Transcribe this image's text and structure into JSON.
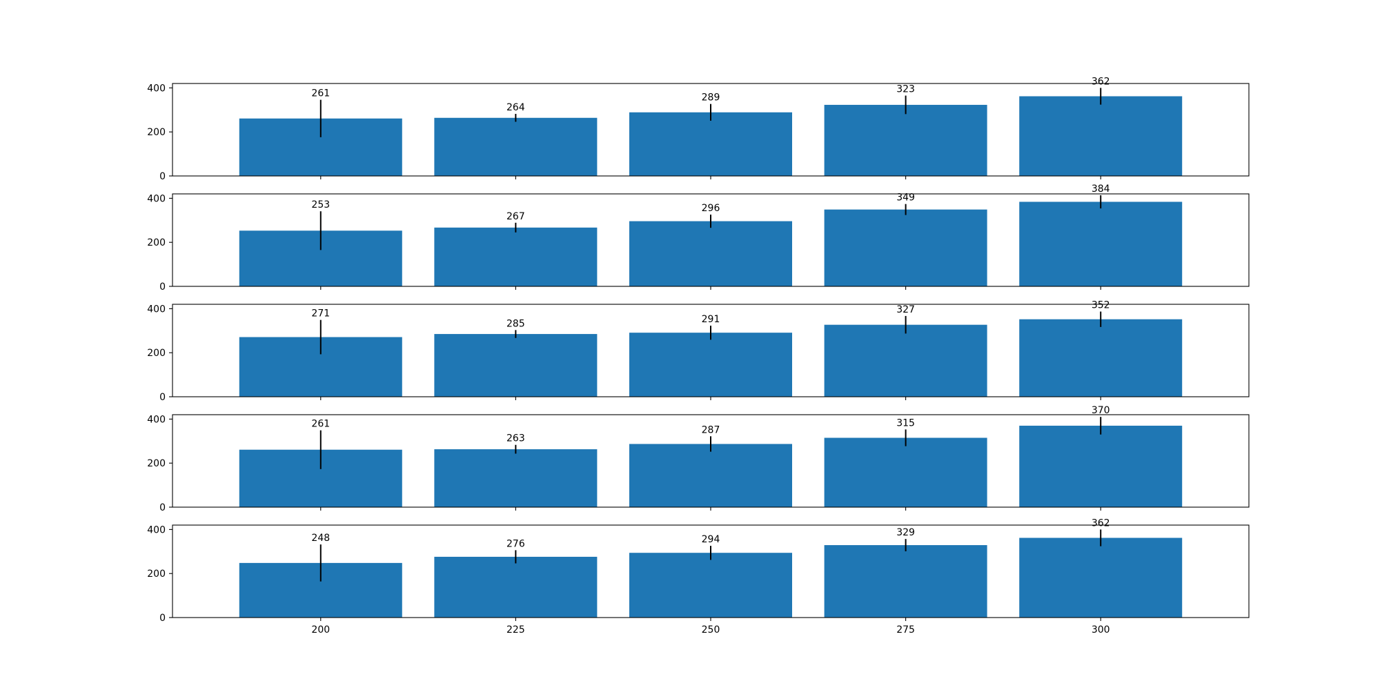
{
  "chart_data": {
    "type": "bar",
    "layout": "5 stacked subplots sharing x axis",
    "grid": false,
    "legend": "none",
    "bar_color": "#1f77b4",
    "error_bar_color": "#000000",
    "categories": [
      "200",
      "225",
      "250",
      "275",
      "300"
    ],
    "x": [
      200,
      225,
      250,
      275,
      300
    ],
    "ylim": [
      0,
      420
    ],
    "yticks": [
      0,
      200,
      400
    ],
    "subplots": [
      {
        "values": [
          261,
          264,
          289,
          323,
          362
        ],
        "labels": [
          "261",
          "264",
          "289",
          "323",
          "362"
        ],
        "errors": [
          85,
          18,
          38,
          42,
          38
        ]
      },
      {
        "values": [
          253,
          267,
          296,
          349,
          384
        ],
        "labels": [
          "253",
          "267",
          "296",
          "349",
          "384"
        ],
        "errors": [
          88,
          22,
          30,
          25,
          30
        ]
      },
      {
        "values": [
          271,
          285,
          291,
          327,
          352
        ],
        "labels": [
          "271",
          "285",
          "291",
          "327",
          "352"
        ],
        "errors": [
          78,
          18,
          32,
          40,
          35
        ]
      },
      {
        "values": [
          261,
          263,
          287,
          315,
          370
        ],
        "labels": [
          "261",
          "263",
          "287",
          "315",
          "370"
        ],
        "errors": [
          88,
          20,
          35,
          38,
          40
        ]
      },
      {
        "values": [
          248,
          276,
          294,
          329,
          362
        ],
        "labels": [
          "248",
          "276",
          "294",
          "329",
          "362"
        ],
        "errors": [
          84,
          30,
          32,
          28,
          38
        ]
      }
    ]
  }
}
